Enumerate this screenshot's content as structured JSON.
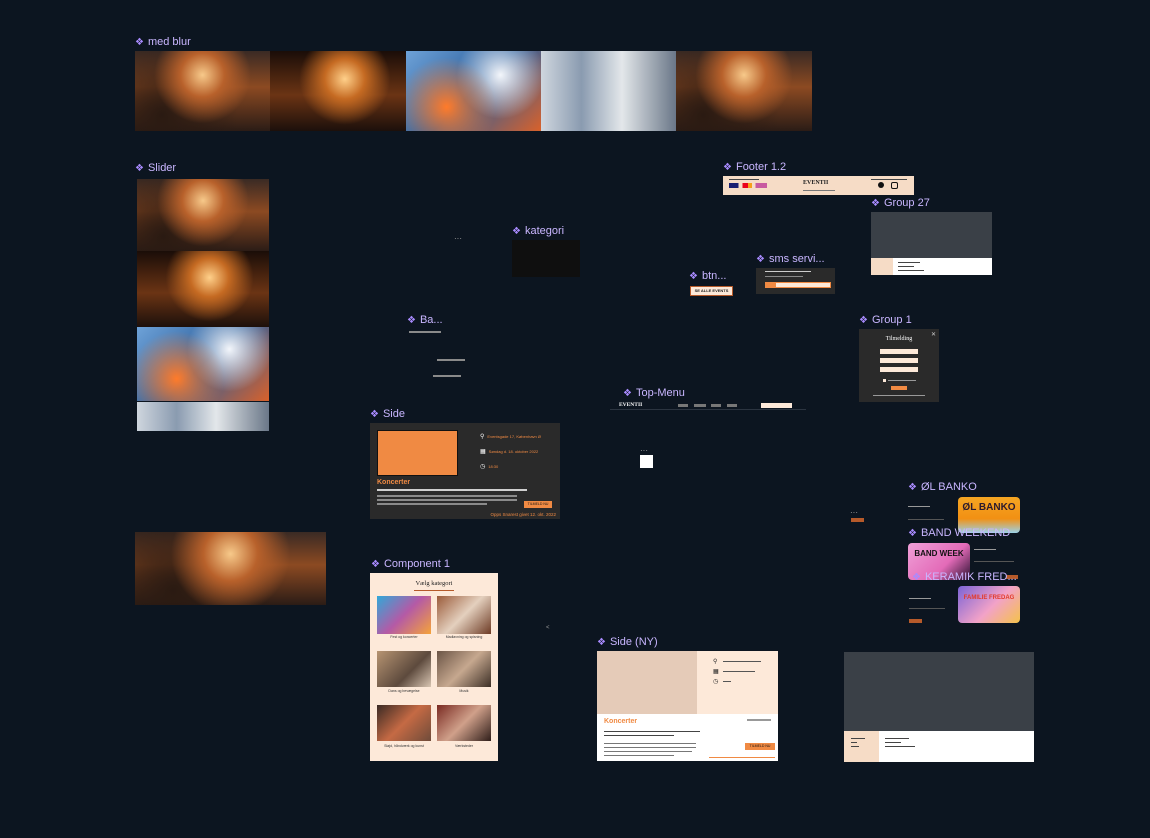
{
  "canvas": {
    "background": "#0c1520",
    "label_color": "#c9b6ff"
  },
  "frames": {
    "med_blur": "med blur",
    "slider": "Slider",
    "footer": "Footer 1.2",
    "kategori": "kategori",
    "group27": "Group 27",
    "sms": "sms servi...",
    "btn": "btn...",
    "ba": "Ba...",
    "group1": "Group 1",
    "top_menu": "Top-Menu",
    "side": "Side",
    "component1": "Component 1",
    "side_ny": "Side (NY)",
    "ol_banko": "ØL BANKO",
    "band_weekend": "BAND WEEKEND",
    "keramik": "KERAMIK FRED..."
  },
  "footer": {
    "brand": "EVENTII"
  },
  "btn": {
    "label": "SE ALLE EVENTS"
  },
  "group1": {
    "title": "Tilmelding"
  },
  "top_menu": {
    "brand": "EVENTII"
  },
  "side": {
    "address": "Eventsgade 17, København Ø",
    "date": "Søndag d. 18. oktober 2022",
    "time": "18:30",
    "category": "Koncerter",
    "button": "TILMELD NU",
    "footer_note": "Opps Snarest givet 12. okt. 2022"
  },
  "component1": {
    "title": "Vælg kategori",
    "items": [
      "Fest og koncerter",
      "Madlavning og spisning",
      "Dans og bevægelse",
      "Musik",
      "Sløjd, håndværk og kunst",
      "Værksteder"
    ]
  },
  "side_ny": {
    "category": "Koncerter",
    "button": "TILMELD NU"
  },
  "posters": {
    "ol_banko": "ØL BANKO",
    "band_week": "BAND WEEK",
    "fredag": "FAMILIE FREDAG"
  },
  "icons": [
    "diamond-icon",
    "location-icon",
    "calendar-icon",
    "clock-icon",
    "close-icon",
    "facebook-icon",
    "instagram-icon"
  ]
}
